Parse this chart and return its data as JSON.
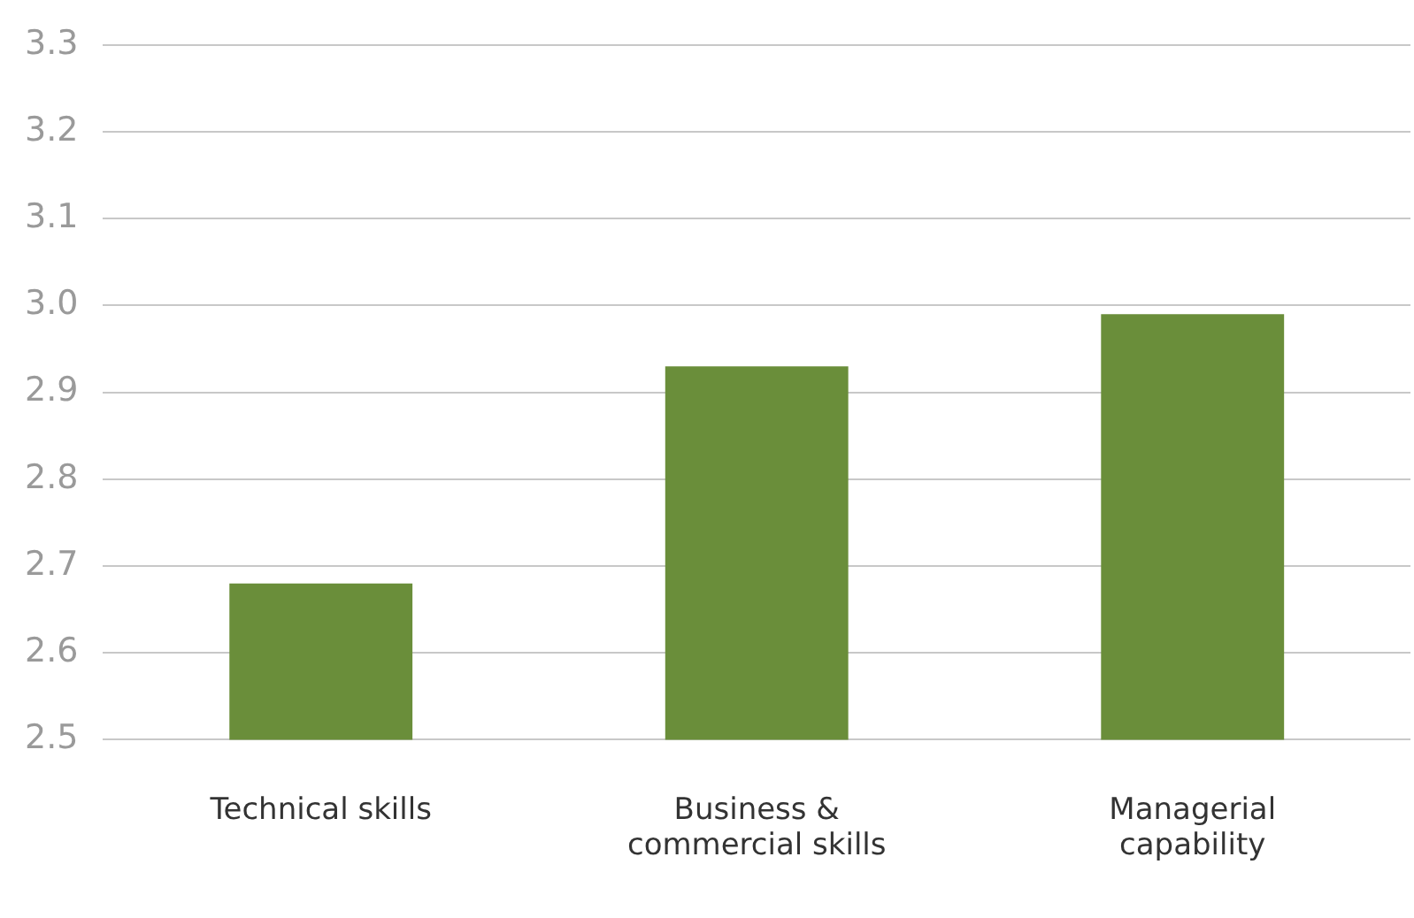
{
  "chart_data": {
    "type": "bar",
    "categories": [
      "Technical skills",
      "Business & commercial skills",
      "Managerial capability"
    ],
    "values": [
      2.68,
      2.93,
      2.99
    ],
    "color": "#6a8e3a",
    "ylim": [
      2.5,
      3.3
    ],
    "yticks": [
      2.5,
      2.6,
      2.7,
      2.8,
      2.9,
      {
        "value": 3,
        "label": "3.0"
      },
      3.1,
      3.2,
      3.3
    ],
    "grid": "y"
  }
}
